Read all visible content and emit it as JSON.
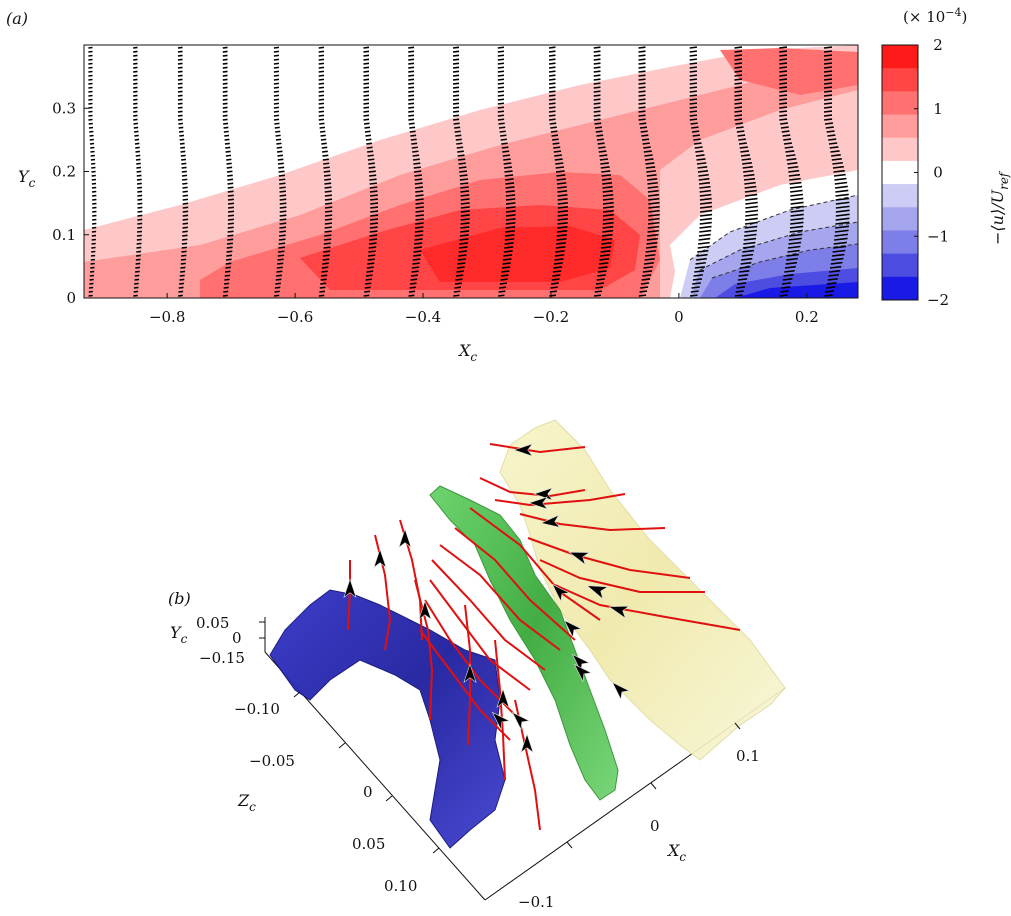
{
  "chart_data": [
    {
      "panel": "(a)",
      "type": "heatmap",
      "title": "",
      "xlabel": "X",
      "xlabel_sub": "c",
      "ylabel": "Y",
      "ylabel_sub": "c",
      "xlim": [
        -0.93,
        0.28
      ],
      "ylim": [
        0,
        0.4
      ],
      "x_ticks": [
        "−0.8",
        "−0.6",
        "−0.4",
        "−0.2",
        "0",
        "0.2"
      ],
      "x_tick_values": [
        -0.8,
        -0.6,
        -0.4,
        -0.2,
        0,
        0.2
      ],
      "y_ticks": [
        "0",
        "0.1",
        "0.2",
        "0.3"
      ],
      "y_tick_values": [
        0,
        0.1,
        0.2,
        0.3
      ],
      "colorbar": {
        "label": "−⟨u⟩/U",
        "label_sub": "ref",
        "scale_note": "(× 10",
        "scale_exp": "−4",
        "scale_close": ")",
        "range": [
          -2,
          2
        ],
        "ticks": [
          "2",
          "1",
          "0",
          "−1",
          "−2"
        ],
        "tick_values": [
          2,
          1,
          0,
          -1,
          -2
        ],
        "levels": 10,
        "colors": [
          "#ff1a1a",
          "#ff4545",
          "#ff7070",
          "#ff9d9d",
          "#ffc8c8",
          "#ffffff",
          "#ccccf5",
          "#a6a6ee",
          "#7e7ee8",
          "#4d4de2",
          "#1a1ae6"
        ]
      },
      "profile_stations_x": [
        -0.92,
        -0.85,
        -0.78,
        -0.71,
        -0.63,
        -0.56,
        -0.49,
        -0.42,
        -0.35,
        -0.28,
        -0.2,
        -0.13,
        -0.06,
        0.02,
        0.09,
        0.16,
        0.23
      ]
    },
    {
      "panel": "(b)",
      "type": "scatter",
      "title": "",
      "xlabel": "X",
      "xlabel_sub": "c",
      "ylabel": "Y",
      "ylabel_sub": "c",
      "zlabel": "Z",
      "zlabel_sub": "c",
      "x_ticks": [
        "0.1",
        "0",
        "−0.1"
      ],
      "y_ticks": [
        "0.05",
        "0"
      ],
      "z_ticks": [
        "−0.15",
        "−0.10",
        "−0.05",
        "0",
        "0.05",
        "0.10"
      ],
      "isosurface_colors": {
        "negative": "#2323b4",
        "zero": "#3cb43c",
        "positive": "#f3f0b4"
      },
      "streamline_color": "#e01010"
    }
  ]
}
